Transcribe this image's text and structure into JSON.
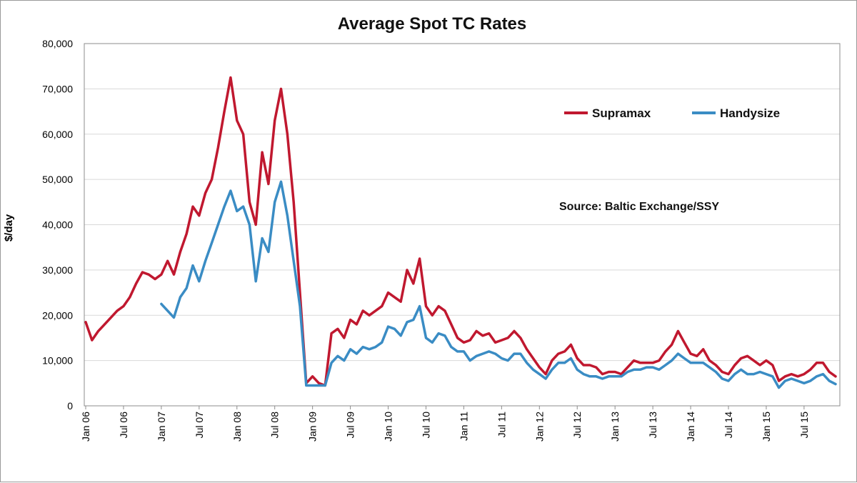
{
  "chart_data": {
    "type": "line",
    "title": "Average Spot TC Rates",
    "ylabel": "$/day",
    "xlabel": "",
    "ylim": [
      0,
      80000
    ],
    "yticks": [
      "0",
      "10,000",
      "20,000",
      "30,000",
      "40,000",
      "50,000",
      "60,000",
      "70,000",
      "80,000"
    ],
    "xticks": [
      "Jan 06",
      "Jul 06",
      "Jan 07",
      "Jul 07",
      "Jan 08",
      "Jul 08",
      "Jan 09",
      "Jul 09",
      "Jan 10",
      "Jul 10",
      "Jan 11",
      "Jul 11",
      "Jan 12",
      "Jul 12",
      "Jan 13",
      "Jul 13",
      "Jan 14",
      "Jul 14",
      "Jan 15",
      "Jul 15"
    ],
    "annotation": "Source: Baltic Exchange/SSY",
    "grid": true,
    "legend_position": "top-right",
    "series": [
      {
        "name": "Supramax",
        "color": "#c0182f",
        "points": [
          [
            "2006-01",
            18500
          ],
          [
            "2006-02",
            14500
          ],
          [
            "2006-03",
            16500
          ],
          [
            "2006-04",
            18000
          ],
          [
            "2006-05",
            19500
          ],
          [
            "2006-06",
            21000
          ],
          [
            "2006-07",
            22000
          ],
          [
            "2006-08",
            24000
          ],
          [
            "2006-09",
            27000
          ],
          [
            "2006-10",
            29500
          ],
          [
            "2006-11",
            29000
          ],
          [
            "2006-12",
            28000
          ],
          [
            "2007-01",
            29000
          ],
          [
            "2007-02",
            32000
          ],
          [
            "2007-03",
            29000
          ],
          [
            "2007-04",
            34000
          ],
          [
            "2007-05",
            38000
          ],
          [
            "2007-06",
            44000
          ],
          [
            "2007-07",
            42000
          ],
          [
            "2007-08",
            47000
          ],
          [
            "2007-09",
            50000
          ],
          [
            "2007-10",
            57000
          ],
          [
            "2007-11",
            65000
          ],
          [
            "2007-12",
            72500
          ],
          [
            "2008-01",
            63000
          ],
          [
            "2008-02",
            60000
          ],
          [
            "2008-03",
            45000
          ],
          [
            "2008-04",
            40000
          ],
          [
            "2008-05",
            56000
          ],
          [
            "2008-06",
            49000
          ],
          [
            "2008-07",
            63000
          ],
          [
            "2008-08",
            70000
          ],
          [
            "2008-09",
            60000
          ],
          [
            "2008-10",
            45000
          ],
          [
            "2008-11",
            25000
          ],
          [
            "2008-12",
            5000
          ],
          [
            "2009-01",
            6500
          ],
          [
            "2009-02",
            5000
          ],
          [
            "2009-03",
            4500
          ],
          [
            "2009-04",
            16000
          ],
          [
            "2009-05",
            17000
          ],
          [
            "2009-06",
            15000
          ],
          [
            "2009-07",
            19000
          ],
          [
            "2009-08",
            18000
          ],
          [
            "2009-09",
            21000
          ],
          [
            "2009-10",
            20000
          ],
          [
            "2009-11",
            21000
          ],
          [
            "2009-12",
            22000
          ],
          [
            "2010-01",
            25000
          ],
          [
            "2010-02",
            24000
          ],
          [
            "2010-03",
            23000
          ],
          [
            "2010-04",
            30000
          ],
          [
            "2010-05",
            27000
          ],
          [
            "2010-06",
            32500
          ],
          [
            "2010-07",
            22000
          ],
          [
            "2010-08",
            20000
          ],
          [
            "2010-09",
            22000
          ],
          [
            "2010-10",
            21000
          ],
          [
            "2010-11",
            18000
          ],
          [
            "2010-12",
            15000
          ],
          [
            "2011-01",
            14000
          ],
          [
            "2011-02",
            14500
          ],
          [
            "2011-03",
            16500
          ],
          [
            "2011-04",
            15500
          ],
          [
            "2011-05",
            16000
          ],
          [
            "2011-06",
            14000
          ],
          [
            "2011-07",
            14500
          ],
          [
            "2011-08",
            15000
          ],
          [
            "2011-09",
            16500
          ],
          [
            "2011-10",
            15000
          ],
          [
            "2011-11",
            12500
          ],
          [
            "2011-12",
            10500
          ],
          [
            "2012-01",
            8500
          ],
          [
            "2012-02",
            7000
          ],
          [
            "2012-03",
            10000
          ],
          [
            "2012-04",
            11500
          ],
          [
            "2012-05",
            12000
          ],
          [
            "2012-06",
            13500
          ],
          [
            "2012-07",
            10500
          ],
          [
            "2012-08",
            9000
          ],
          [
            "2012-09",
            9000
          ],
          [
            "2012-10",
            8500
          ],
          [
            "2012-11",
            7000
          ],
          [
            "2012-12",
            7500
          ],
          [
            "2013-01",
            7500
          ],
          [
            "2013-02",
            7000
          ],
          [
            "2013-03",
            8500
          ],
          [
            "2013-04",
            10000
          ],
          [
            "2013-05",
            9500
          ],
          [
            "2013-06",
            9500
          ],
          [
            "2013-07",
            9500
          ],
          [
            "2013-08",
            10000
          ],
          [
            "2013-09",
            12000
          ],
          [
            "2013-10",
            13500
          ],
          [
            "2013-11",
            16500
          ],
          [
            "2013-12",
            14000
          ],
          [
            "2014-01",
            11500
          ],
          [
            "2014-02",
            11000
          ],
          [
            "2014-03",
            12500
          ],
          [
            "2014-04",
            10000
          ],
          [
            "2014-05",
            9000
          ],
          [
            "2014-06",
            7500
          ],
          [
            "2014-07",
            7000
          ],
          [
            "2014-08",
            9000
          ],
          [
            "2014-09",
            10500
          ],
          [
            "2014-10",
            11000
          ],
          [
            "2014-11",
            10000
          ],
          [
            "2014-12",
            9000
          ],
          [
            "2015-01",
            10000
          ],
          [
            "2015-02",
            9000
          ],
          [
            "2015-03",
            5500
          ],
          [
            "2015-04",
            6500
          ],
          [
            "2015-05",
            7000
          ],
          [
            "2015-06",
            6500
          ],
          [
            "2015-07",
            7000
          ],
          [
            "2015-08",
            8000
          ],
          [
            "2015-09",
            9500
          ],
          [
            "2015-10",
            9500
          ],
          [
            "2015-11",
            7500
          ],
          [
            "2015-12",
            6500
          ]
        ]
      },
      {
        "name": "Handysize",
        "color": "#3a8cc4",
        "points": [
          [
            "2007-01",
            22500
          ],
          [
            "2007-02",
            21000
          ],
          [
            "2007-03",
            19500
          ],
          [
            "2007-04",
            24000
          ],
          [
            "2007-05",
            26000
          ],
          [
            "2007-06",
            31000
          ],
          [
            "2007-07",
            27500
          ],
          [
            "2007-08",
            32000
          ],
          [
            "2007-09",
            36000
          ],
          [
            "2007-10",
            40000
          ],
          [
            "2007-11",
            44000
          ],
          [
            "2007-12",
            47500
          ],
          [
            "2008-01",
            43000
          ],
          [
            "2008-02",
            44000
          ],
          [
            "2008-03",
            40000
          ],
          [
            "2008-04",
            27500
          ],
          [
            "2008-05",
            37000
          ],
          [
            "2008-06",
            34000
          ],
          [
            "2008-07",
            45000
          ],
          [
            "2008-08",
            49500
          ],
          [
            "2008-09",
            42000
          ],
          [
            "2008-10",
            32000
          ],
          [
            "2008-11",
            22000
          ],
          [
            "2008-12",
            4500
          ],
          [
            "2009-01",
            4500
          ],
          [
            "2009-02",
            4500
          ],
          [
            "2009-03",
            4500
          ],
          [
            "2009-04",
            9500
          ],
          [
            "2009-05",
            11000
          ],
          [
            "2009-06",
            10000
          ],
          [
            "2009-07",
            12500
          ],
          [
            "2009-08",
            11500
          ],
          [
            "2009-09",
            13000
          ],
          [
            "2009-10",
            12500
          ],
          [
            "2009-11",
            13000
          ],
          [
            "2009-12",
            14000
          ],
          [
            "2010-01",
            17500
          ],
          [
            "2010-02",
            17000
          ],
          [
            "2010-03",
            15500
          ],
          [
            "2010-04",
            18500
          ],
          [
            "2010-05",
            19000
          ],
          [
            "2010-06",
            22000
          ],
          [
            "2010-07",
            15000
          ],
          [
            "2010-08",
            14000
          ],
          [
            "2010-09",
            16000
          ],
          [
            "2010-10",
            15500
          ],
          [
            "2010-11",
            13000
          ],
          [
            "2010-12",
            12000
          ],
          [
            "2011-01",
            12000
          ],
          [
            "2011-02",
            10000
          ],
          [
            "2011-03",
            11000
          ],
          [
            "2011-04",
            11500
          ],
          [
            "2011-05",
            12000
          ],
          [
            "2011-06",
            11500
          ],
          [
            "2011-07",
            10500
          ],
          [
            "2011-08",
            10000
          ],
          [
            "2011-09",
            11500
          ],
          [
            "2011-10",
            11500
          ],
          [
            "2011-11",
            9500
          ],
          [
            "2011-12",
            8000
          ],
          [
            "2012-01",
            7000
          ],
          [
            "2012-02",
            6000
          ],
          [
            "2012-03",
            8000
          ],
          [
            "2012-04",
            9500
          ],
          [
            "2012-05",
            9500
          ],
          [
            "2012-06",
            10500
          ],
          [
            "2012-07",
            8000
          ],
          [
            "2012-08",
            7000
          ],
          [
            "2012-09",
            6500
          ],
          [
            "2012-10",
            6500
          ],
          [
            "2012-11",
            6000
          ],
          [
            "2012-12",
            6500
          ],
          [
            "2013-01",
            6500
          ],
          [
            "2013-02",
            6500
          ],
          [
            "2013-03",
            7500
          ],
          [
            "2013-04",
            8000
          ],
          [
            "2013-05",
            8000
          ],
          [
            "2013-06",
            8500
          ],
          [
            "2013-07",
            8500
          ],
          [
            "2013-08",
            8000
          ],
          [
            "2013-09",
            9000
          ],
          [
            "2013-10",
            10000
          ],
          [
            "2013-11",
            11500
          ],
          [
            "2013-12",
            10500
          ],
          [
            "2014-01",
            9500
          ],
          [
            "2014-02",
            9500
          ],
          [
            "2014-03",
            9500
          ],
          [
            "2014-04",
            8500
          ],
          [
            "2014-05",
            7500
          ],
          [
            "2014-06",
            6000
          ],
          [
            "2014-07",
            5500
          ],
          [
            "2014-08",
            7000
          ],
          [
            "2014-09",
            8000
          ],
          [
            "2014-10",
            7000
          ],
          [
            "2014-11",
            7000
          ],
          [
            "2014-12",
            7500
          ],
          [
            "2015-01",
            7000
          ],
          [
            "2015-02",
            6500
          ],
          [
            "2015-03",
            4000
          ],
          [
            "2015-04",
            5500
          ],
          [
            "2015-05",
            6000
          ],
          [
            "2015-06",
            5500
          ],
          [
            "2015-07",
            5000
          ],
          [
            "2015-08",
            5500
          ],
          [
            "2015-09",
            6500
          ],
          [
            "2015-10",
            7000
          ],
          [
            "2015-11",
            5500
          ],
          [
            "2015-12",
            4800
          ]
        ]
      }
    ]
  }
}
